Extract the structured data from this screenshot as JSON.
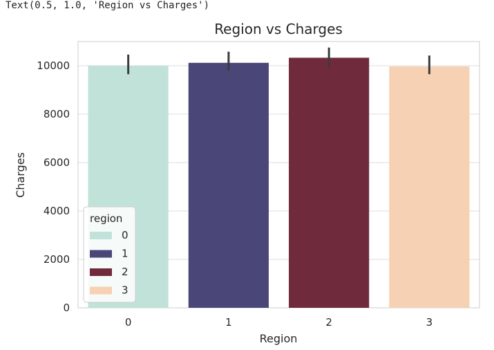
{
  "cell_output": {
    "text": "Text(0.5, 1.0, 'Region vs Charges')"
  },
  "colors": {
    "background": "#ffffff",
    "grid": "#dddddd",
    "axis_frame": "#cccccc",
    "error_bar": "#3b3b3b"
  },
  "chart_data": {
    "type": "bar",
    "title": "Region vs Charges",
    "xlabel": "Region",
    "ylabel": "Charges",
    "categories": [
      "0",
      "1",
      "2",
      "3"
    ],
    "values": [
      10000,
      10120,
      10330,
      9970
    ],
    "error_low": [
      9650,
      9800,
      9920,
      9650
    ],
    "error_high": [
      10460,
      10580,
      10750,
      10420
    ],
    "colors": [
      "#c0e2d9",
      "#4a4778",
      "#6f2b3c",
      "#f6d1b3"
    ],
    "yticks": [
      0,
      2000,
      4000,
      6000,
      8000,
      10000
    ],
    "ylim": [
      0,
      11000
    ],
    "grid": true,
    "legend": {
      "title": "region",
      "placement": "lower-left",
      "entries": [
        "0",
        "1",
        "2",
        "3"
      ]
    }
  }
}
